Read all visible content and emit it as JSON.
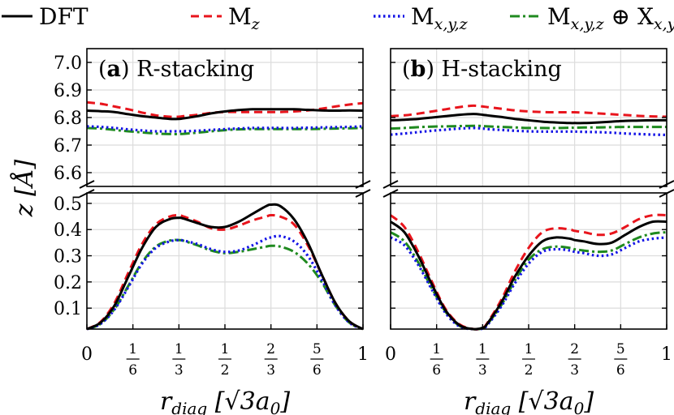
{
  "legend": [
    {
      "key": "DFT",
      "label": "DFT",
      "color": "#000000",
      "dash": "none"
    },
    {
      "key": "Mz",
      "label": "M",
      "sub": "z",
      "color": "#e8141c",
      "dash": "10,6"
    },
    {
      "key": "Mxyz",
      "label": "M",
      "sub": "x,y,z",
      "color": "#1414e6",
      "dash": "2.5,3.5"
    },
    {
      "key": "MX",
      "label": "M",
      "sub": "x,y,z",
      "mid": " ⊕ X",
      "sub2": "x,y,z",
      "color": "#1f8a1f",
      "dash": "12,4,3,4"
    }
  ],
  "axes": {
    "ylabel": "z [Å]",
    "xlabel_prefix": "r",
    "xlabel_sub": "diag",
    "xlabel_unit": "[√3a",
    "xlabel_unit_sub": "0",
    "xlabel_close": "]",
    "xticks": [
      {
        "v": 0,
        "n": "0",
        "d": ""
      },
      {
        "v": 0.16667,
        "n": "1",
        "d": "6"
      },
      {
        "v": 0.33333,
        "n": "1",
        "d": "3"
      },
      {
        "v": 0.5,
        "n": "1",
        "d": "2"
      },
      {
        "v": 0.66667,
        "n": "2",
        "d": "3"
      },
      {
        "v": 0.83333,
        "n": "5",
        "d": "6"
      },
      {
        "v": 1,
        "n": "1",
        "d": ""
      }
    ],
    "yticks_upper": [
      "6.6",
      "6.7",
      "6.8",
      "6.9",
      "7.0"
    ],
    "yticks_lower": [
      "0.1",
      "0.2",
      "0.3",
      "0.4",
      "0.5"
    ]
  },
  "chart_data": [
    {
      "type": "line",
      "panel_label": "(a)",
      "title": "R-stacking",
      "xlim": [
        0,
        1
      ],
      "ylim_upper": [
        6.55,
        7.05
      ],
      "ylim_lower": [
        0.02,
        0.54
      ],
      "x": [
        0,
        0.05,
        0.1,
        0.15,
        0.2,
        0.25,
        0.3,
        0.3333,
        0.35,
        0.4,
        0.45,
        0.5,
        0.55,
        0.6,
        0.65,
        0.6667,
        0.7,
        0.75,
        0.8,
        0.85,
        0.9,
        0.95,
        1
      ],
      "series": [
        {
          "name": "DFT",
          "upper": [
            6.825,
            6.823,
            6.82,
            6.812,
            6.805,
            6.8,
            6.795,
            6.795,
            6.797,
            6.805,
            6.815,
            6.822,
            6.827,
            6.83,
            6.83,
            6.83,
            6.83,
            6.83,
            6.828,
            6.826,
            6.825,
            6.826,
            6.825
          ],
          "lower": [
            0.02,
            0.045,
            0.11,
            0.22,
            0.33,
            0.41,
            0.44,
            0.445,
            0.442,
            0.425,
            0.41,
            0.41,
            0.43,
            0.46,
            0.49,
            0.495,
            0.49,
            0.44,
            0.35,
            0.23,
            0.12,
            0.05,
            0.02
          ]
        },
        {
          "name": "Mz",
          "upper": [
            6.855,
            6.85,
            6.84,
            6.83,
            6.818,
            6.808,
            6.803,
            6.803,
            6.805,
            6.81,
            6.817,
            6.82,
            6.82,
            6.82,
            6.82,
            6.82,
            6.82,
            6.822,
            6.826,
            6.832,
            6.84,
            6.847,
            6.852
          ],
          "lower": [
            0.02,
            0.048,
            0.12,
            0.235,
            0.345,
            0.42,
            0.45,
            0.455,
            0.45,
            0.43,
            0.405,
            0.4,
            0.415,
            0.435,
            0.45,
            0.455,
            0.45,
            0.42,
            0.34,
            0.23,
            0.12,
            0.05,
            0.02
          ]
        },
        {
          "name": "Mxyz",
          "upper": [
            6.768,
            6.766,
            6.762,
            6.757,
            6.753,
            6.75,
            6.75,
            6.75,
            6.75,
            6.752,
            6.755,
            6.758,
            6.76,
            6.762,
            6.762,
            6.762,
            6.762,
            6.762,
            6.763,
            6.764,
            6.765,
            6.766,
            6.768
          ],
          "lower": [
            0.02,
            0.04,
            0.095,
            0.18,
            0.27,
            0.33,
            0.355,
            0.36,
            0.358,
            0.345,
            0.325,
            0.315,
            0.32,
            0.34,
            0.365,
            0.37,
            0.375,
            0.355,
            0.3,
            0.21,
            0.11,
            0.045,
            0.02
          ]
        },
        {
          "name": "MX",
          "upper": [
            6.762,
            6.76,
            6.755,
            6.75,
            6.746,
            6.742,
            6.74,
            6.74,
            6.741,
            6.745,
            6.75,
            6.754,
            6.757,
            6.758,
            6.758,
            6.758,
            6.758,
            6.758,
            6.758,
            6.759,
            6.76,
            6.761,
            6.762
          ],
          "lower": [
            0.02,
            0.04,
            0.097,
            0.185,
            0.275,
            0.335,
            0.358,
            0.36,
            0.357,
            0.34,
            0.32,
            0.31,
            0.315,
            0.325,
            0.335,
            0.338,
            0.335,
            0.315,
            0.27,
            0.2,
            0.11,
            0.045,
            0.02
          ]
        }
      ]
    },
    {
      "type": "line",
      "panel_label": "(b)",
      "title": "H-stacking",
      "xlim": [
        0,
        1
      ],
      "ylim_upper": [
        6.55,
        7.05
      ],
      "ylim_lower": [
        0.02,
        0.54
      ],
      "x": [
        0,
        0.05,
        0.1,
        0.15,
        0.2,
        0.25,
        0.3,
        0.3333,
        0.35,
        0.4,
        0.45,
        0.5,
        0.55,
        0.6,
        0.65,
        0.6667,
        0.7,
        0.75,
        0.8,
        0.85,
        0.9,
        0.95,
        1
      ],
      "series": [
        {
          "name": "DFT",
          "upper": [
            6.79,
            6.792,
            6.795,
            6.8,
            6.805,
            6.81,
            6.813,
            6.81,
            6.808,
            6.802,
            6.795,
            6.79,
            6.785,
            6.782,
            6.78,
            6.78,
            6.78,
            6.782,
            6.785,
            6.788,
            6.789,
            6.79,
            6.79
          ],
          "lower": [
            0.43,
            0.39,
            0.3,
            0.19,
            0.09,
            0.035,
            0.02,
            0.025,
            0.04,
            0.12,
            0.22,
            0.3,
            0.355,
            0.37,
            0.365,
            0.36,
            0.355,
            0.345,
            0.35,
            0.38,
            0.41,
            0.43,
            0.43
          ]
        },
        {
          "name": "Mz",
          "upper": [
            6.805,
            6.808,
            6.814,
            6.822,
            6.83,
            6.838,
            6.843,
            6.84,
            6.838,
            6.832,
            6.826,
            6.822,
            6.82,
            6.819,
            6.819,
            6.819,
            6.818,
            6.815,
            6.812,
            6.809,
            6.806,
            6.804,
            6.803
          ],
          "lower": [
            0.455,
            0.41,
            0.315,
            0.2,
            0.095,
            0.038,
            0.02,
            0.025,
            0.043,
            0.13,
            0.24,
            0.33,
            0.39,
            0.405,
            0.4,
            0.395,
            0.39,
            0.38,
            0.385,
            0.41,
            0.44,
            0.455,
            0.455
          ]
        },
        {
          "name": "Mxyz",
          "upper": [
            6.738,
            6.742,
            6.747,
            6.752,
            6.756,
            6.76,
            6.762,
            6.76,
            6.758,
            6.755,
            6.752,
            6.75,
            6.749,
            6.749,
            6.749,
            6.749,
            6.748,
            6.747,
            6.745,
            6.742,
            6.74,
            6.738,
            6.737
          ],
          "lower": [
            0.37,
            0.34,
            0.265,
            0.17,
            0.08,
            0.03,
            0.02,
            0.022,
            0.035,
            0.105,
            0.195,
            0.27,
            0.315,
            0.325,
            0.32,
            0.315,
            0.31,
            0.3,
            0.305,
            0.33,
            0.355,
            0.365,
            0.37
          ]
        },
        {
          "name": "MX",
          "upper": [
            6.76,
            6.762,
            6.765,
            6.767,
            6.768,
            6.769,
            6.77,
            6.769,
            6.768,
            6.766,
            6.764,
            6.762,
            6.762,
            6.762,
            6.763,
            6.763,
            6.764,
            6.764,
            6.765,
            6.766,
            6.766,
            6.766,
            6.766
          ],
          "lower": [
            0.39,
            0.355,
            0.275,
            0.175,
            0.085,
            0.032,
            0.02,
            0.023,
            0.038,
            0.11,
            0.205,
            0.285,
            0.325,
            0.335,
            0.33,
            0.325,
            0.32,
            0.315,
            0.32,
            0.345,
            0.37,
            0.385,
            0.39
          ]
        }
      ]
    }
  ]
}
